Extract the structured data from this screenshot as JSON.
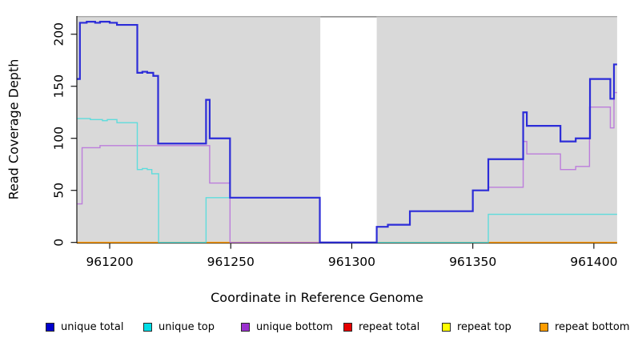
{
  "figure": {
    "panel_color": "#d9d9d9",
    "panel_top_edge_color": "#a9a9a9",
    "background": "#ffffff",
    "gap_band": {
      "x_start": 961287,
      "x_end": 961310.3,
      "color": "#ffffff",
      "top_border_color": "#999999"
    }
  },
  "chart_data": {
    "type": "line",
    "subtype": "step-coverage",
    "title": "",
    "xlabel": "Coordinate in Reference Genome",
    "ylabel": "Read Coverage Depth",
    "xlim": [
      961186.6,
      961409.6
    ],
    "ylim": [
      0,
      217.5
    ],
    "x_ticks": [
      961200,
      961250,
      961300,
      961350,
      961400
    ],
    "y_ticks": [
      0,
      50,
      100,
      150,
      200
    ],
    "grid": false,
    "legend_position": "bottom",
    "axis_color": "#000000",
    "draw_order": [
      "repeat total",
      "repeat top",
      "repeat bottom",
      "unique bottom",
      "unique top",
      "unique total"
    ],
    "series": [
      {
        "name": "unique total",
        "color": "#2c2cd8",
        "legend_color": "#0000cc",
        "width": 2.2,
        "steps": [
          [
            961186.6,
            157
          ],
          [
            961187.7,
            211
          ],
          [
            961190.5,
            212
          ],
          [
            961194,
            211
          ],
          [
            961196,
            212
          ],
          [
            961200,
            211
          ],
          [
            961203,
            209
          ],
          [
            961211.4,
            163
          ],
          [
            961213.5,
            164
          ],
          [
            961215.5,
            163
          ],
          [
            961218,
            160
          ],
          [
            961220,
            95
          ],
          [
            961239.8,
            137
          ],
          [
            961241.3,
            100
          ],
          [
            961249.7,
            43
          ],
          [
            961286.8,
            0
          ],
          [
            961310.3,
            15
          ],
          [
            961314.9,
            17
          ],
          [
            961324,
            30
          ],
          [
            961350,
            50
          ],
          [
            961356.4,
            80
          ],
          [
            961370.8,
            125
          ],
          [
            961372.3,
            112
          ],
          [
            961386.2,
            97
          ],
          [
            961392.5,
            100
          ],
          [
            961398.4,
            157
          ],
          [
            961406.8,
            138
          ],
          [
            961408.3,
            171
          ]
        ]
      },
      {
        "name": "unique top",
        "color": "#5edcdc",
        "legend_color": "#00dde6",
        "width": 1.4,
        "steps": [
          [
            961186.6,
            119
          ],
          [
            961192,
            118
          ],
          [
            961197,
            117
          ],
          [
            961199,
            118
          ],
          [
            961203,
            115
          ],
          [
            961211.4,
            70
          ],
          [
            961213.5,
            71
          ],
          [
            961215.5,
            70
          ],
          [
            961217.4,
            66
          ],
          [
            961220.2,
            0
          ],
          [
            961239.8,
            43
          ],
          [
            961286.8,
            0
          ],
          [
            961356.4,
            27
          ]
        ]
      },
      {
        "name": "unique bottom",
        "color": "#bc7ddb",
        "legend_color": "#9a30cf",
        "width": 1.4,
        "steps": [
          [
            961186.6,
            37
          ],
          [
            961188.6,
            91
          ],
          [
            961196,
            93
          ],
          [
            961241.3,
            57
          ],
          [
            961249.7,
            0
          ],
          [
            961310.3,
            15
          ],
          [
            961314.9,
            17
          ],
          [
            961324,
            30
          ],
          [
            961350,
            50
          ],
          [
            961356.4,
            53
          ],
          [
            961370.8,
            97
          ],
          [
            961372.3,
            85
          ],
          [
            961386.2,
            70
          ],
          [
            961392.5,
            73
          ],
          [
            961398.2,
            130
          ],
          [
            961406.8,
            110
          ],
          [
            961408.3,
            144
          ]
        ]
      },
      {
        "name": "repeat total",
        "color": "#dd2222",
        "legend_color": "#e60000",
        "width": 1.3,
        "steps": [
          [
            961186.6,
            0
          ]
        ]
      },
      {
        "name": "repeat top",
        "color": "#ffff44",
        "legend_color": "#ffff00",
        "width": 1.3,
        "steps": [
          [
            961186.6,
            0
          ]
        ]
      },
      {
        "name": "repeat bottom",
        "color": "#ff9d00",
        "legend_color": "#ff9d00",
        "width": 1.6,
        "steps": [
          [
            961186.6,
            0
          ]
        ]
      }
    ]
  }
}
